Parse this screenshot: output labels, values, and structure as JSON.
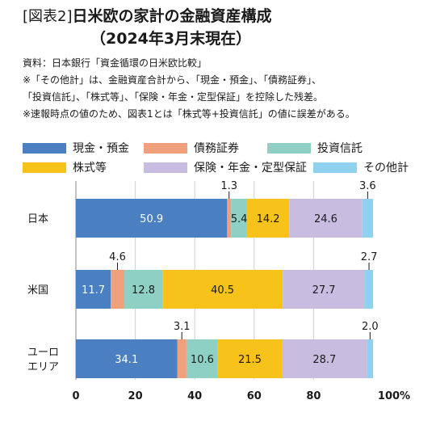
{
  "header": {
    "figure_label": "[図表2]",
    "title_line1": "日米欧の家計の金融資産構成",
    "title_line2": "（2024年3月末現在）"
  },
  "notes": [
    "資料：日本銀行「資金循環の日米欧比較」",
    "※「その他計」は、金融資産合計から、「現金・預金」、「債務証券」、",
    "「投資信託」、「株式等」、「保険・年金・定型保証」を控除した残差。",
    "※速報時点の値のため、図表1とは「株式等+投資信託」の値に誤差がある。"
  ],
  "chart_data": {
    "type": "bar",
    "orientation": "horizontal",
    "stacked": true,
    "legend_position": "top",
    "categories": [
      "日本",
      "米国",
      "ユーロ\nエリア"
    ],
    "series": [
      {
        "name": "現金・預金",
        "color": "#4a7fc1",
        "label_color": "#ffffff",
        "values": [
          50.9,
          11.7,
          34.1
        ]
      },
      {
        "name": "債務証券",
        "color": "#f0a07a",
        "label_color": "#1a1a1a",
        "values": [
          1.3,
          4.6,
          3.1
        ]
      },
      {
        "name": "投資信託",
        "color": "#8ed1c4",
        "label_color": "#1a1a1a",
        "values": [
          5.4,
          12.8,
          10.6
        ]
      },
      {
        "name": "株式等",
        "color": "#f7c21a",
        "label_color": "#1a1a1a",
        "values": [
          14.2,
          40.5,
          21.5
        ]
      },
      {
        "name": "保険・年金・定型保証",
        "color": "#c8bde0",
        "label_color": "#1a1a1a",
        "values": [
          24.6,
          27.7,
          28.7
        ]
      },
      {
        "name": "その他計",
        "color": "#8fd1ee",
        "label_color": "#1a1a1a",
        "values": [
          3.6,
          2.7,
          2.0
        ]
      }
    ],
    "x_ticks": [
      "0",
      "20",
      "40",
      "60",
      "80",
      "100%"
    ],
    "xlim": [
      0,
      100
    ],
    "grid": true
  }
}
